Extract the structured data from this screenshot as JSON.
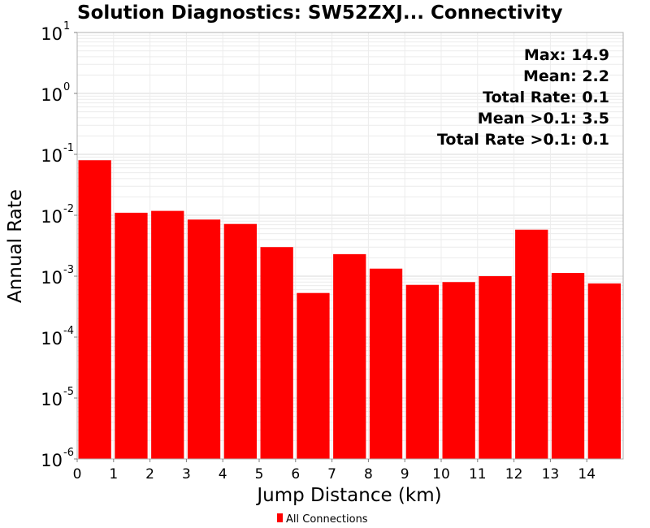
{
  "chart_data": {
    "type": "bar",
    "title": "Solution Diagnostics: SW52ZXJ... Connectivity",
    "xlabel": "Jump Distance (km)",
    "ylabel": "Annual Rate",
    "x_bins": [
      [
        0,
        1
      ],
      [
        1,
        2
      ],
      [
        2,
        3
      ],
      [
        3,
        4
      ],
      [
        4,
        5
      ],
      [
        5,
        6
      ],
      [
        6,
        7
      ],
      [
        7,
        8
      ],
      [
        8,
        9
      ],
      [
        9,
        10
      ],
      [
        10,
        11
      ],
      [
        11,
        12
      ],
      [
        12,
        13
      ],
      [
        13,
        14
      ],
      [
        14,
        15
      ]
    ],
    "xlim": [
      0,
      15
    ],
    "ylim": [
      1e-06,
      10
    ],
    "y_scale": "log",
    "x_ticks": [
      "0",
      "1",
      "2",
      "3",
      "4",
      "5",
      "6",
      "7",
      "8",
      "9",
      "10",
      "11",
      "12",
      "13",
      "14"
    ],
    "y_ticks": [
      {
        "base": "10",
        "exp": "-6"
      },
      {
        "base": "10",
        "exp": "-5"
      },
      {
        "base": "10",
        "exp": "-4"
      },
      {
        "base": "10",
        "exp": "-3"
      },
      {
        "base": "10",
        "exp": "-2"
      },
      {
        "base": "10",
        "exp": "-1"
      },
      {
        "base": "10",
        "exp": "0"
      },
      {
        "base": "10",
        "exp": "1"
      }
    ],
    "series": [
      {
        "name": "All Connections",
        "color": "#ff0000",
        "values": [
          0.08,
          0.011,
          0.0118,
          0.0085,
          0.0072,
          0.003,
          0.00053,
          0.0023,
          0.00133,
          0.00072,
          0.0008,
          0.001,
          0.0058,
          0.00113,
          0.00076
        ]
      }
    ],
    "annotations": [
      "Max: 14.9",
      "Mean: 2.2",
      "Total Rate: 0.1",
      "Mean >0.1: 3.5",
      "Total Rate >0.1: 0.1"
    ],
    "grid": true,
    "legend_position": "bottom-center"
  }
}
